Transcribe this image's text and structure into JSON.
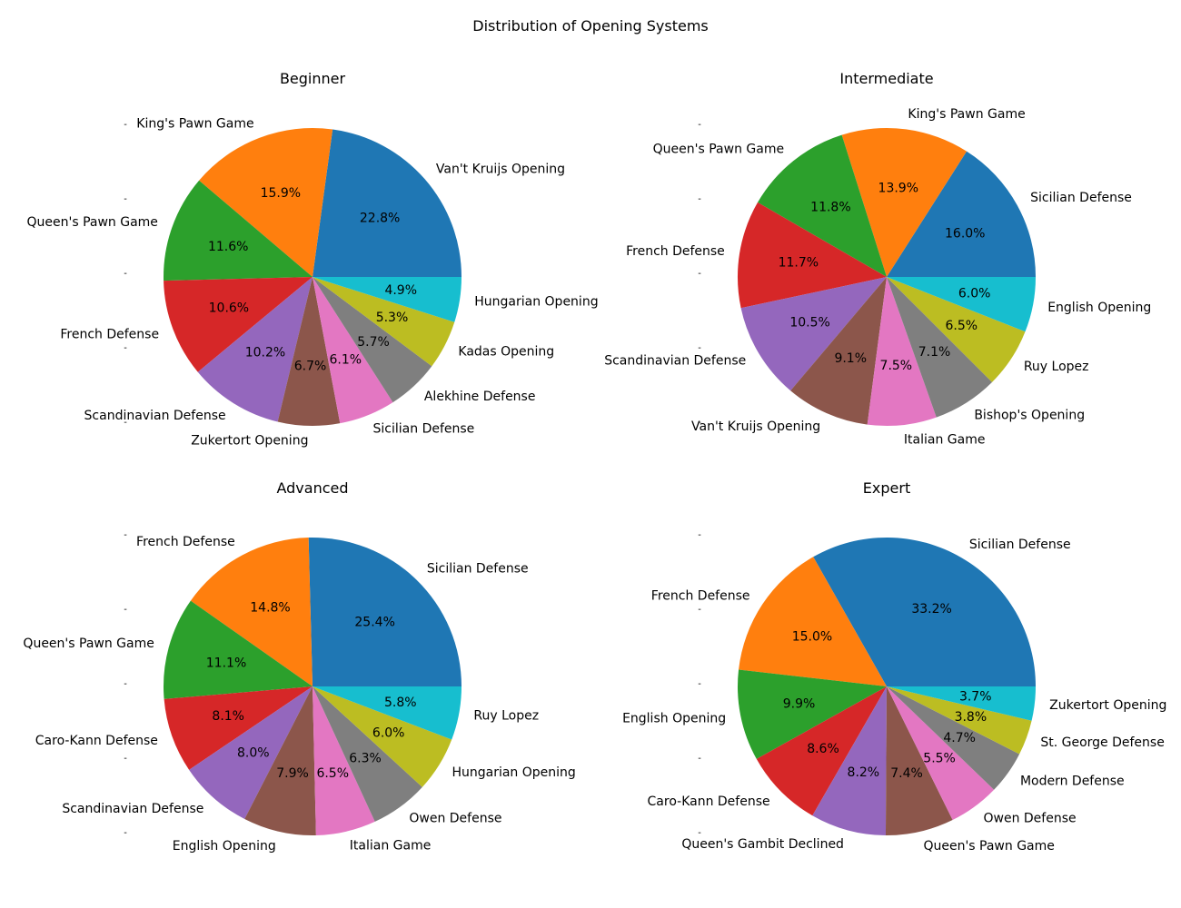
{
  "figure": {
    "title": "Distribution of Opening Systems",
    "tick_mark": "-"
  },
  "chart_data": [
    {
      "type": "pie",
      "title": "Beginner",
      "start_angle": 0,
      "direction": "counterclockwise",
      "categories": [
        "Van't Kruijs Opening",
        "King's Pawn Game",
        "Queen's Pawn Game",
        "French Defense",
        "Scandinavian Defense",
        "Zukertort Opening",
        "Sicilian Defense",
        "Alekhine Defense",
        "Kadas Opening",
        "Hungarian Opening"
      ],
      "values": [
        22.8,
        15.9,
        11.6,
        10.6,
        10.2,
        6.7,
        6.1,
        5.7,
        5.3,
        4.9
      ],
      "value_labels": [
        "22.8%",
        "15.9%",
        "11.6%",
        "10.6%",
        "10.2%",
        "6.7%",
        "6.1%",
        "5.7%",
        "5.3%",
        "4.9%"
      ]
    },
    {
      "type": "pie",
      "title": "Intermediate",
      "start_angle": 0,
      "direction": "counterclockwise",
      "categories": [
        "Sicilian Defense",
        "King's Pawn Game",
        "Queen's Pawn Game",
        "French Defense",
        "Scandinavian Defense",
        "Van't Kruijs Opening",
        "Italian Game",
        "Bishop's Opening",
        "Ruy Lopez",
        "English Opening"
      ],
      "values": [
        16.0,
        13.9,
        11.8,
        11.7,
        10.5,
        9.1,
        7.5,
        7.1,
        6.5,
        6.0
      ],
      "value_labels": [
        "16.0%",
        "13.9%",
        "11.8%",
        "11.7%",
        "10.5%",
        "9.1%",
        "7.5%",
        "7.1%",
        "6.5%",
        "6.0%"
      ]
    },
    {
      "type": "pie",
      "title": "Advanced",
      "start_angle": 0,
      "direction": "counterclockwise",
      "categories": [
        "Sicilian Defense",
        "French Defense",
        "Queen's Pawn Game",
        "Caro-Kann Defense",
        "Scandinavian Defense",
        "English Opening",
        "Italian Game",
        "Owen Defense",
        "Hungarian Opening",
        "Ruy Lopez"
      ],
      "values": [
        25.4,
        14.8,
        11.1,
        8.1,
        8.0,
        7.9,
        6.5,
        6.3,
        6.0,
        5.8
      ],
      "value_labels": [
        "25.4%",
        "14.8%",
        "11.1%",
        "8.1%",
        "8.0%",
        "7.9%",
        "6.5%",
        "6.3%",
        "6.0%",
        "5.8%"
      ]
    },
    {
      "type": "pie",
      "title": "Expert",
      "start_angle": 0,
      "direction": "counterclockwise",
      "categories": [
        "Sicilian Defense",
        "French Defense",
        "English Opening",
        "Caro-Kann Defense",
        "Queen's Gambit Declined",
        "Queen's Pawn Game",
        "Owen Defense",
        "Modern Defense",
        "St. George Defense",
        "Zukertort Opening"
      ],
      "values": [
        33.2,
        15.0,
        9.9,
        8.6,
        8.2,
        7.4,
        5.5,
        4.7,
        3.8,
        3.7
      ],
      "value_labels": [
        "33.2%",
        "15.0%",
        "9.9%",
        "8.6%",
        "8.2%",
        "7.4%",
        "5.5%",
        "4.7%",
        "3.8%",
        "3.7%"
      ]
    }
  ],
  "colors": [
    "#1f77b4",
    "#ff7f0e",
    "#2ca02c",
    "#d62728",
    "#9467bd",
    "#8c564b",
    "#e377c2",
    "#7f7f7f",
    "#bcbd22",
    "#17becf"
  ]
}
